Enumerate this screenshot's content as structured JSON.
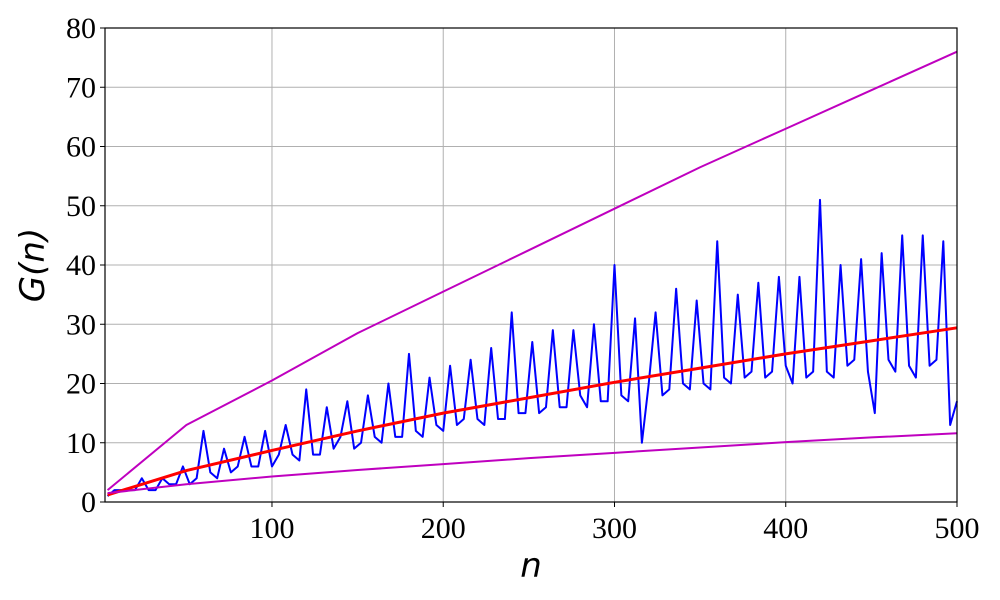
{
  "chart_data": {
    "type": "line",
    "xlabel": "n",
    "ylabel": "G(n)",
    "xlim": [
      2.5,
      500
    ],
    "ylim": [
      0,
      80
    ],
    "xticks": [
      100,
      200,
      300,
      400,
      500
    ],
    "yticks": [
      0,
      10,
      20,
      30,
      40,
      50,
      60,
      70,
      80
    ],
    "grid": true,
    "series": [
      {
        "color": "#0000ff",
        "linewidth": 2,
        "x": [
          4,
          8,
          12,
          16,
          20,
          24,
          28,
          32,
          36,
          40,
          44,
          48,
          52,
          56,
          60,
          64,
          68,
          72,
          76,
          80,
          84,
          88,
          92,
          96,
          100,
          104,
          108,
          112,
          116,
          120,
          124,
          128,
          132,
          136,
          140,
          144,
          148,
          152,
          156,
          160,
          164,
          168,
          172,
          176,
          180,
          184,
          188,
          192,
          196,
          200,
          204,
          208,
          212,
          216,
          220,
          224,
          228,
          232,
          236,
          240,
          244,
          248,
          252,
          256,
          260,
          264,
          268,
          272,
          276,
          280,
          284,
          288,
          292,
          296,
          300,
          304,
          308,
          312,
          316,
          320,
          324,
          328,
          332,
          336,
          340,
          344,
          348,
          352,
          356,
          360,
          364,
          368,
          372,
          376,
          380,
          384,
          388,
          392,
          396,
          400,
          404,
          408,
          412,
          416,
          420,
          424,
          428,
          432,
          436,
          440,
          444,
          448,
          452,
          456,
          460,
          464,
          468,
          472,
          476,
          480,
          484,
          488,
          492,
          496,
          500
        ],
        "values": [
          1,
          2,
          2,
          2,
          2,
          4,
          2,
          2,
          4,
          3,
          3,
          6,
          3,
          4,
          12,
          5,
          4,
          9,
          5,
          6,
          11,
          6,
          6,
          12,
          6,
          8,
          13,
          8,
          7,
          19,
          8,
          8,
          16,
          9,
          11,
          17,
          9,
          10,
          18,
          11,
          10,
          20,
          11,
          11,
          25,
          12,
          11,
          21,
          13,
          12,
          23,
          13,
          14,
          24,
          14,
          13,
          26,
          14,
          14,
          32,
          15,
          15,
          27,
          15,
          16,
          29,
          16,
          16,
          29,
          18,
          16,
          30,
          17,
          17,
          40,
          18,
          17,
          31,
          10,
          20,
          32,
          18,
          19,
          36,
          20,
          19,
          34,
          20,
          19,
          44,
          21,
          20,
          35,
          21,
          22,
          37,
          21,
          22,
          38,
          23,
          20,
          38,
          21,
          22,
          51,
          22,
          21,
          40,
          23,
          24,
          41,
          22,
          15,
          42,
          24,
          22,
          45,
          23,
          21,
          45,
          23,
          24,
          44,
          13,
          17
        ]
      },
      {
        "color": "#ff0000",
        "linewidth": 3,
        "x": [
          4,
          50,
          100,
          150,
          200,
          250,
          300,
          350,
          400,
          450,
          500
        ],
        "values": [
          1.2,
          5.3,
          8.7,
          12,
          15,
          17.6,
          20.2,
          22.6,
          25,
          27.2,
          29.4
        ]
      },
      {
        "color": "#bf00bf",
        "linewidth": 2,
        "x": [
          4,
          50,
          100,
          150,
          200,
          250,
          300,
          350,
          400,
          450,
          500
        ],
        "values": [
          2,
          13,
          20.5,
          28.5,
          35.5,
          42.5,
          49.5,
          56.5,
          63,
          69.5,
          76
        ]
      },
      {
        "color": "#bf00bf",
        "linewidth": 2,
        "x": [
          4,
          50,
          100,
          150,
          200,
          250,
          300,
          350,
          400,
          450,
          500
        ],
        "values": [
          1.5,
          3,
          4.3,
          5.4,
          6.4,
          7.4,
          8.3,
          9.2,
          10.1,
          10.9,
          11.6
        ]
      }
    ]
  }
}
